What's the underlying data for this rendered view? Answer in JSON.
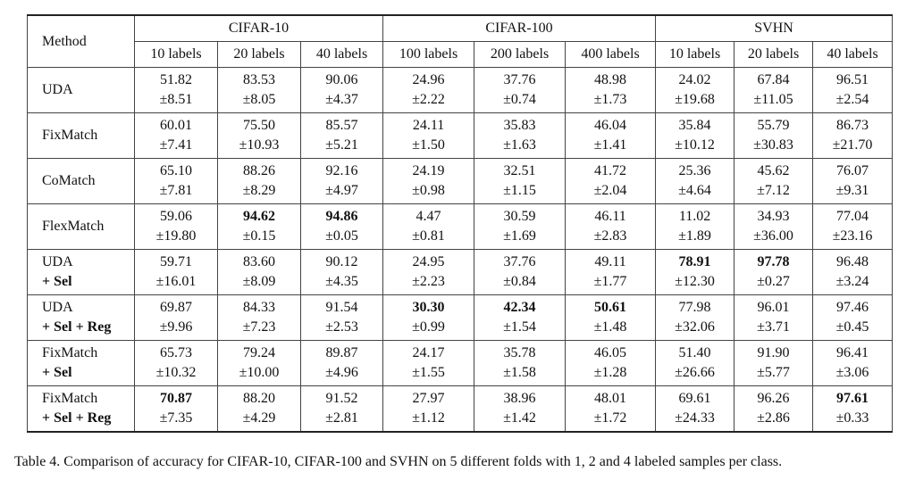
{
  "table": {
    "method_header": "Method",
    "groups": [
      {
        "name": "CIFAR-10",
        "columns": [
          "10 labels",
          "20 labels",
          "40 labels"
        ]
      },
      {
        "name": "CIFAR-100",
        "columns": [
          "100 labels",
          "200 labels",
          "400 labels"
        ]
      },
      {
        "name": "SVHN",
        "columns": [
          "10 labels",
          "20 labels",
          "40 labels"
        ]
      }
    ],
    "rows": [
      {
        "method": [
          "UDA"
        ],
        "cells": [
          {
            "mean": "51.82",
            "std": "±8.51"
          },
          {
            "mean": "83.53",
            "std": "±8.05"
          },
          {
            "mean": "90.06",
            "std": "±4.37"
          },
          {
            "mean": "24.96",
            "std": "±2.22"
          },
          {
            "mean": "37.76",
            "std": "±0.74"
          },
          {
            "mean": "48.98",
            "std": "±1.73"
          },
          {
            "mean": "24.02",
            "std": "±19.68"
          },
          {
            "mean": "67.84",
            "std": "±11.05"
          },
          {
            "mean": "96.51",
            "std": "±2.54"
          }
        ]
      },
      {
        "method": [
          "FixMatch"
        ],
        "cells": [
          {
            "mean": "60.01",
            "std": "±7.41"
          },
          {
            "mean": "75.50",
            "std": "±10.93"
          },
          {
            "mean": "85.57",
            "std": "±5.21"
          },
          {
            "mean": "24.11",
            "std": "±1.50"
          },
          {
            "mean": "35.83",
            "std": "±1.63"
          },
          {
            "mean": "46.04",
            "std": "±1.41"
          },
          {
            "mean": "35.84",
            "std": "±10.12"
          },
          {
            "mean": "55.79",
            "std": "±30.83"
          },
          {
            "mean": "86.73",
            "std": "±21.70"
          }
        ]
      },
      {
        "method": [
          "CoMatch"
        ],
        "cells": [
          {
            "mean": "65.10",
            "std": "±7.81"
          },
          {
            "mean": "88.26",
            "std": "±8.29"
          },
          {
            "mean": "92.16",
            "std": "±4.97"
          },
          {
            "mean": "24.19",
            "std": "±0.98"
          },
          {
            "mean": "32.51",
            "std": "±1.15"
          },
          {
            "mean": "41.72",
            "std": "±2.04"
          },
          {
            "mean": "25.36",
            "std": "±4.64"
          },
          {
            "mean": "45.62",
            "std": "±7.12"
          },
          {
            "mean": "76.07",
            "std": "±9.31"
          }
        ]
      },
      {
        "method": [
          "FlexMatch"
        ],
        "cells": [
          {
            "mean": "59.06",
            "std": "±19.80"
          },
          {
            "mean": "94.62",
            "std": "±0.15",
            "bold": true
          },
          {
            "mean": "94.86",
            "std": "±0.05",
            "bold": true
          },
          {
            "mean": "4.47",
            "std": "±0.81"
          },
          {
            "mean": "30.59",
            "std": "±1.69"
          },
          {
            "mean": "46.11",
            "std": "±2.83"
          },
          {
            "mean": "11.02",
            "std": "±1.89"
          },
          {
            "mean": "34.93",
            "std": "±36.00"
          },
          {
            "mean": "77.04",
            "std": "±23.16"
          }
        ]
      },
      {
        "method": [
          "UDA",
          "+ Sel"
        ],
        "cells": [
          {
            "mean": "59.71",
            "std": "±16.01"
          },
          {
            "mean": "83.60",
            "std": "±8.09"
          },
          {
            "mean": "90.12",
            "std": "±4.35"
          },
          {
            "mean": "24.95",
            "std": "±2.23"
          },
          {
            "mean": "37.76",
            "std": "±0.84"
          },
          {
            "mean": "49.11",
            "std": "±1.77"
          },
          {
            "mean": "78.91",
            "std": "±12.30",
            "bold": true
          },
          {
            "mean": "97.78",
            "std": "±0.27",
            "bold": true
          },
          {
            "mean": "96.48",
            "std": "±3.24"
          }
        ]
      },
      {
        "method": [
          "UDA",
          "+ Sel + Reg"
        ],
        "cells": [
          {
            "mean": "69.87",
            "std": "±9.96"
          },
          {
            "mean": "84.33",
            "std": "±7.23"
          },
          {
            "mean": "91.54",
            "std": "±2.53"
          },
          {
            "mean": "30.30",
            "std": "±0.99",
            "bold": true
          },
          {
            "mean": "42.34",
            "std": "±1.54",
            "bold": true
          },
          {
            "mean": "50.61",
            "std": "±1.48",
            "bold": true
          },
          {
            "mean": "77.98",
            "std": "±32.06"
          },
          {
            "mean": "96.01",
            "std": "±3.71"
          },
          {
            "mean": "97.46",
            "std": "±0.45"
          }
        ]
      },
      {
        "method": [
          "FixMatch",
          "+ Sel"
        ],
        "cells": [
          {
            "mean": "65.73",
            "std": "±10.32"
          },
          {
            "mean": "79.24",
            "std": "±10.00"
          },
          {
            "mean": "89.87",
            "std": "±4.96"
          },
          {
            "mean": "24.17",
            "std": "±1.55"
          },
          {
            "mean": "35.78",
            "std": "±1.58"
          },
          {
            "mean": "46.05",
            "std": "±1.28"
          },
          {
            "mean": "51.40",
            "std": "±26.66"
          },
          {
            "mean": "91.90",
            "std": "±5.77"
          },
          {
            "mean": "96.41",
            "std": "±3.06"
          }
        ]
      },
      {
        "method": [
          "FixMatch",
          "+ Sel + Reg"
        ],
        "cells": [
          {
            "mean": "70.87",
            "std": "±7.35",
            "bold": true
          },
          {
            "mean": "88.20",
            "std": "±4.29"
          },
          {
            "mean": "91.52",
            "std": "±2.81"
          },
          {
            "mean": "27.97",
            "std": "±1.12"
          },
          {
            "mean": "38.96",
            "std": "±1.42"
          },
          {
            "mean": "48.01",
            "std": "±1.72"
          },
          {
            "mean": "69.61",
            "std": "±24.33"
          },
          {
            "mean": "96.26",
            "std": "±2.86"
          },
          {
            "mean": "97.61",
            "std": "±0.33",
            "bold": true
          }
        ]
      }
    ]
  },
  "caption": "Table 4. Comparison of accuracy for CIFAR-10, CIFAR-100 and SVHN on 5 different folds with 1, 2 and 4 labeled samples per class."
}
